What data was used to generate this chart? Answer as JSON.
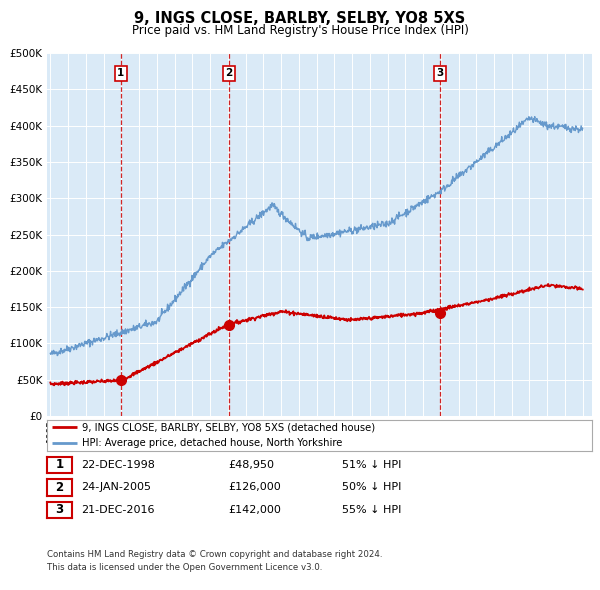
{
  "title": "9, INGS CLOSE, BARLBY, SELBY, YO8 5XS",
  "subtitle": "Price paid vs. HM Land Registry's House Price Index (HPI)",
  "xlim": [
    1994.8,
    2025.5
  ],
  "ylim": [
    0,
    500000
  ],
  "yticks": [
    0,
    50000,
    100000,
    150000,
    200000,
    250000,
    300000,
    350000,
    400000,
    450000,
    500000
  ],
  "bg_color": "#daeaf7",
  "grid_color": "#ffffff",
  "red_line_color": "#cc0000",
  "blue_line_color": "#6699cc",
  "vline_color": "#cc0000",
  "sale_points": [
    {
      "year": 1998.97,
      "value": 48950
    },
    {
      "year": 2005.07,
      "value": 126000
    },
    {
      "year": 2016.97,
      "value": 142000
    }
  ],
  "vline_years": [
    1998.97,
    2005.07,
    2016.97
  ],
  "label_numbers": [
    "1",
    "2",
    "3"
  ],
  "legend_line1": "9, INGS CLOSE, BARLBY, SELBY, YO8 5XS (detached house)",
  "legend_line2": "HPI: Average price, detached house, North Yorkshire",
  "table_rows": [
    {
      "num": "1",
      "date": "22-DEC-1998",
      "price": "£48,950",
      "hpi": "51% ↓ HPI"
    },
    {
      "num": "2",
      "date": "24-JAN-2005",
      "price": "£126,000",
      "hpi": "50% ↓ HPI"
    },
    {
      "num": "3",
      "date": "21-DEC-2016",
      "price": "£142,000",
      "hpi": "55% ↓ HPI"
    }
  ],
  "footnote1": "Contains HM Land Registry data © Crown copyright and database right 2024.",
  "footnote2": "This data is licensed under the Open Government Licence v3.0."
}
